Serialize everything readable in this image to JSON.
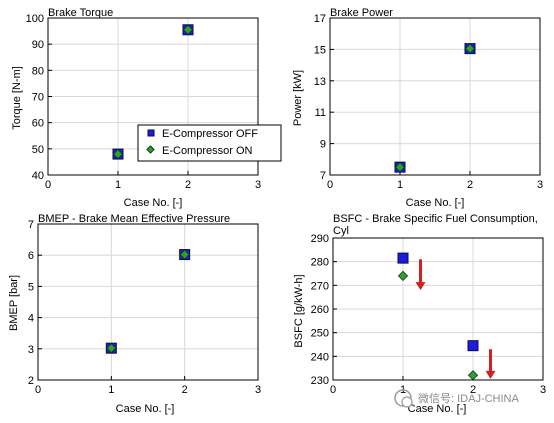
{
  "colors": {
    "off": "#1c1cdc",
    "on": "#2ea02e",
    "off_stroke": "#0a0a55",
    "on_stroke": "#0a3a0a",
    "arrow": "#d02020",
    "grid": "#d8d8d8"
  },
  "legend": {
    "off_label": "E-Compressor OFF",
    "on_label": "E-Compressor ON"
  },
  "watermark": {
    "text": "微信号: IDAJ-CHINA"
  },
  "chart_data": [
    {
      "id": "torque",
      "type": "scatter",
      "title": "Brake Torque",
      "title2": "",
      "xlabel": "Case No. [-]",
      "ylabel": "Torque [N-m]",
      "xlim": [
        0,
        3
      ],
      "ylim": [
        40,
        100
      ],
      "xticks": [
        0,
        1,
        2,
        3
      ],
      "yticks": [
        40,
        50,
        60,
        70,
        80,
        90,
        100
      ],
      "grid": true,
      "legend": true,
      "series": [
        {
          "name": "E-Compressor OFF",
          "x": [
            1,
            2
          ],
          "y": [
            48,
            95.5
          ]
        },
        {
          "name": "E-Compressor ON",
          "x": [
            1,
            2
          ],
          "y": [
            48,
            95.5
          ]
        }
      ]
    },
    {
      "id": "power",
      "type": "scatter",
      "title": "Brake Power",
      "title2": "",
      "xlabel": "Case No. [-]",
      "ylabel": "Power [kW]",
      "xlim": [
        0,
        3
      ],
      "ylim": [
        7,
        17
      ],
      "xticks": [
        0,
        1,
        2,
        3
      ],
      "yticks": [
        7,
        9,
        11,
        13,
        15,
        17
      ],
      "grid": true,
      "legend": false,
      "series": [
        {
          "name": "E-Compressor OFF",
          "x": [
            1,
            2
          ],
          "y": [
            7.5,
            15.05
          ]
        },
        {
          "name": "E-Compressor ON",
          "x": [
            1,
            2
          ],
          "y": [
            7.5,
            15.05
          ]
        }
      ]
    },
    {
      "id": "bmep",
      "type": "scatter",
      "title": "BMEP - Brake Mean Effective Pressure",
      "title2": "",
      "xlabel": "Case No. [-]",
      "ylabel": "BMEP [bar]",
      "xlim": [
        0,
        3
      ],
      "ylim": [
        2,
        7
      ],
      "xticks": [
        0,
        1,
        2,
        3
      ],
      "yticks": [
        2,
        3,
        4,
        5,
        6,
        7
      ],
      "grid": true,
      "legend": false,
      "series": [
        {
          "name": "E-Compressor OFF",
          "x": [
            1,
            2
          ],
          "y": [
            3.02,
            6.02
          ]
        },
        {
          "name": "E-Compressor ON",
          "x": [
            1,
            2
          ],
          "y": [
            3.02,
            6.02
          ]
        }
      ]
    },
    {
      "id": "bsfc",
      "type": "scatter",
      "title": "BSFC - Brake Specific Fuel Consumption,",
      "title2": "Cyl",
      "xlabel": "Case No. [-]",
      "ylabel": "BSFC [g/kW-h]",
      "xlim": [
        0,
        3
      ],
      "ylim": [
        230,
        290
      ],
      "xticks": [
        0,
        1,
        2,
        3
      ],
      "yticks": [
        230,
        240,
        250,
        260,
        270,
        280,
        290
      ],
      "grid": true,
      "legend": false,
      "series": [
        {
          "name": "E-Compressor OFF",
          "x": [
            1,
            2
          ],
          "y": [
            281.5,
            244.5
          ]
        },
        {
          "name": "E-Compressor ON",
          "x": [
            1,
            2
          ],
          "y": [
            274,
            232
          ]
        }
      ],
      "annotations": [
        {
          "type": "down-arrow",
          "x": 1.25,
          "y_from": 281,
          "y_to": 268
        },
        {
          "type": "down-arrow",
          "x": 2.25,
          "y_from": 243,
          "y_to": 230.5
        }
      ]
    }
  ]
}
